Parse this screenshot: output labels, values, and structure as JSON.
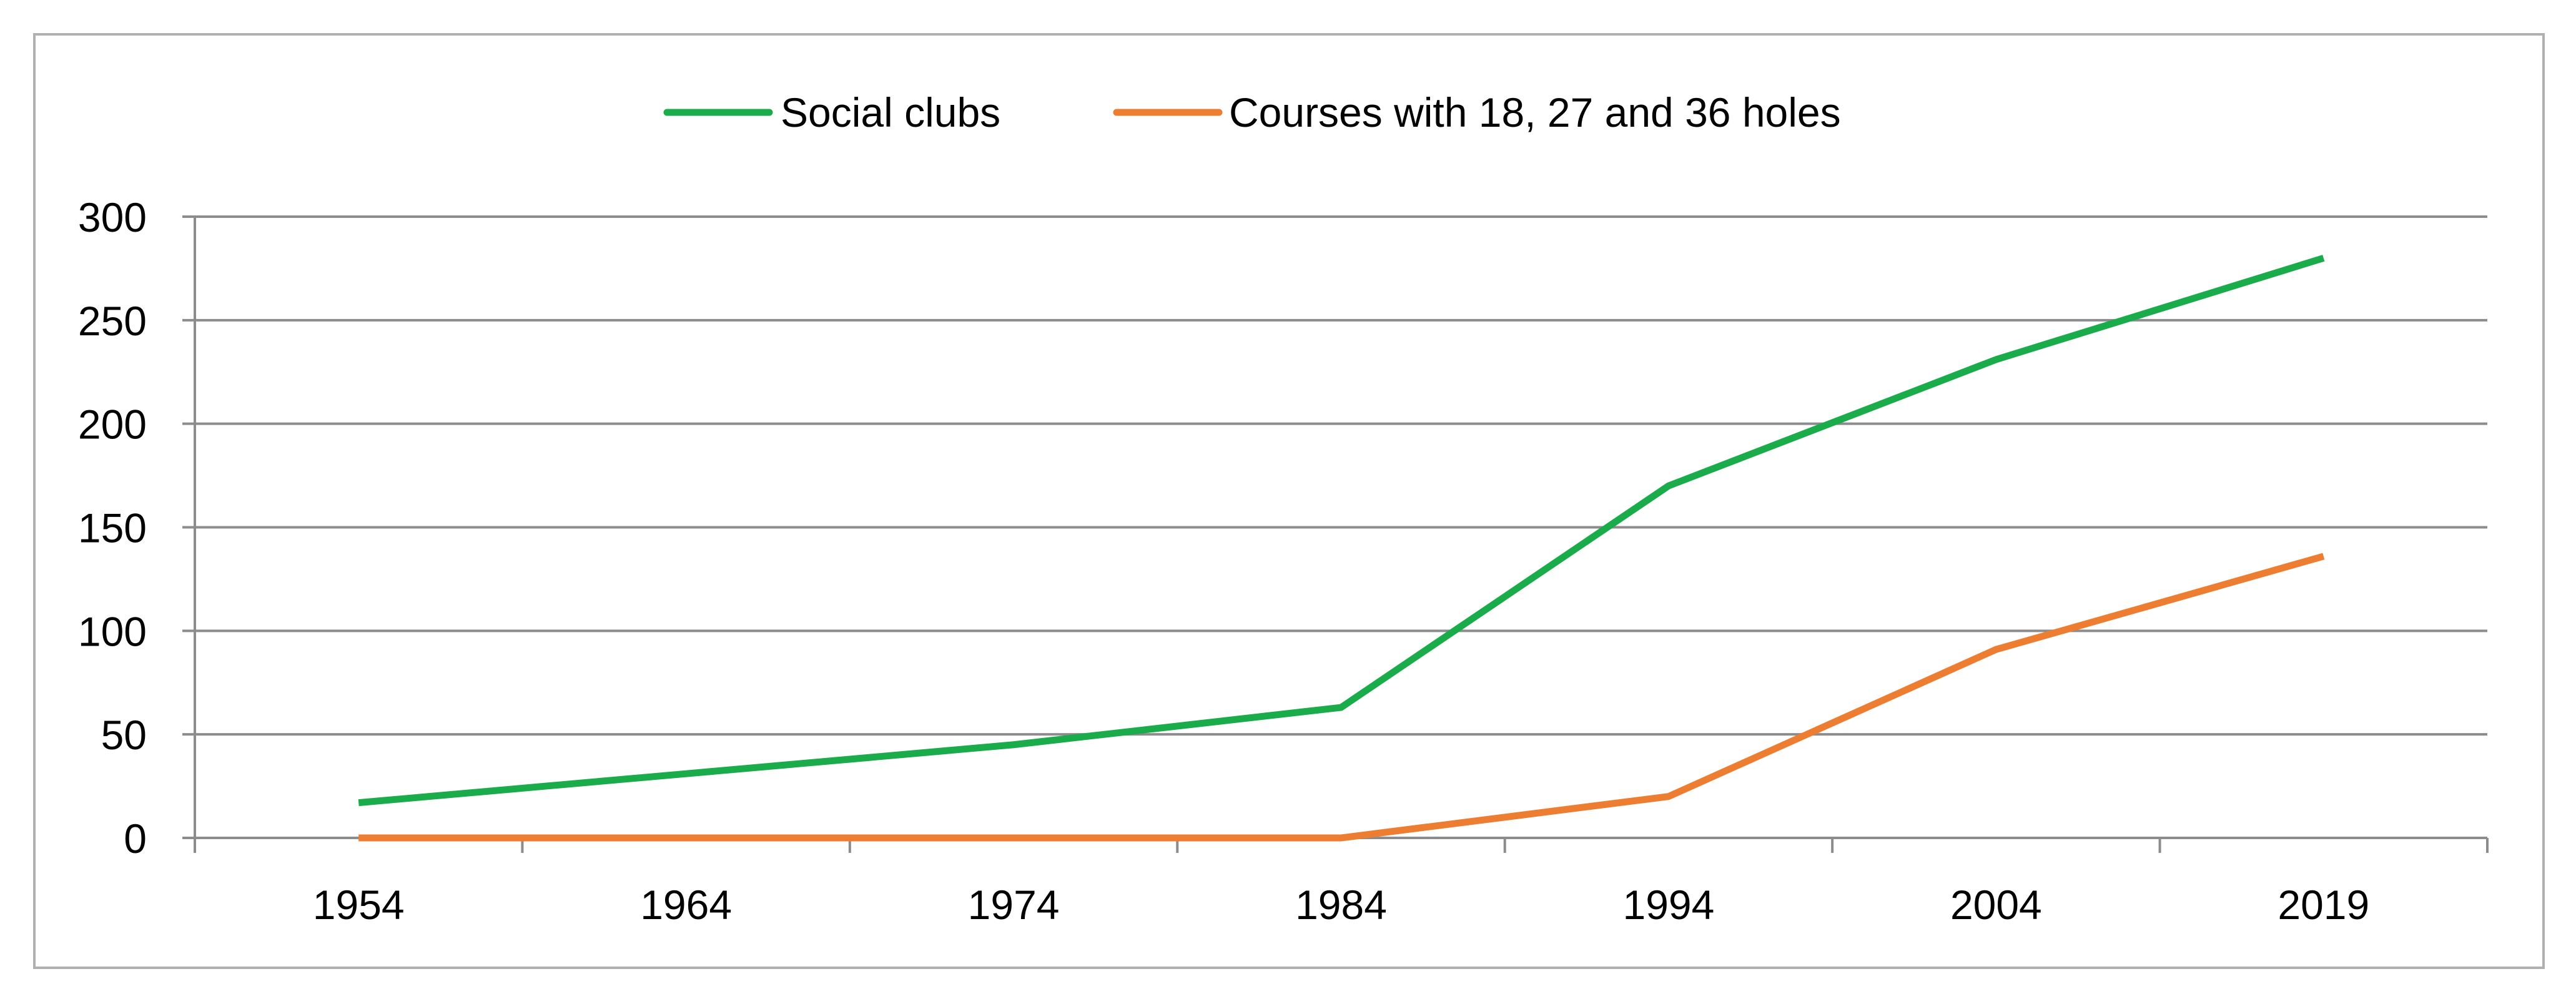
{
  "chart_data": {
    "type": "line",
    "title": "",
    "xlabel": "",
    "ylabel": "",
    "categories": [
      "1954",
      "1964",
      "1974",
      "1984",
      "1994",
      "2004",
      "2019"
    ],
    "ylim": [
      0,
      300
    ],
    "yticks": [
      0,
      50,
      100,
      150,
      200,
      250,
      300
    ],
    "grid": true,
    "legend_position": "top-center",
    "series": [
      {
        "name": "Social clubs",
        "color": "#1aab4b",
        "values": [
          17,
          31,
          45,
          63,
          170,
          231,
          280
        ]
      },
      {
        "name": "Courses with 18, 27 and 36 holes",
        "color": "#ed7d31",
        "values": [
          0,
          0,
          0,
          0,
          20,
          91,
          136
        ]
      }
    ]
  },
  "colors": {
    "gridline": "#8c8c8c",
    "axis": "#8c8c8c",
    "border": "#b0b0b0"
  }
}
